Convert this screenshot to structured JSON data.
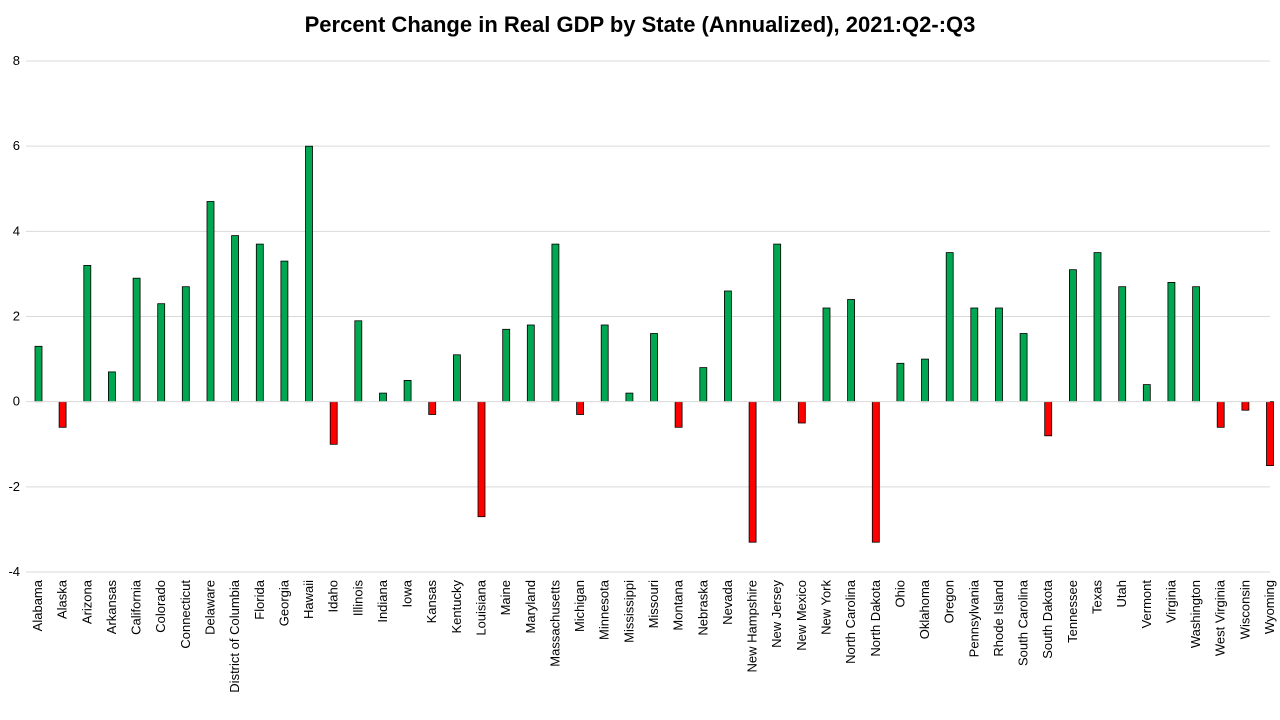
{
  "chart_data": {
    "type": "bar",
    "title": "Percent Change in Real GDP by State (Annualized), 2021:Q2-:Q3",
    "xlabel": "",
    "ylabel": "",
    "ylim": [
      -4,
      8
    ],
    "yticks": [
      -4,
      -2,
      0,
      2,
      4,
      6,
      8
    ],
    "grid": true,
    "legend": "none",
    "colors": {
      "positive": "#00a650",
      "negative": "#ff0000",
      "outline": "#000000",
      "grid": "#d9d9d9"
    },
    "categories": [
      "Alabama",
      "Alaska",
      "Arizona",
      "Arkansas",
      "California",
      "Colorado",
      "Connecticut",
      "Delaware",
      "District of Columbia",
      "Florida",
      "Georgia",
      "Hawaii",
      "Idaho",
      "Illinois",
      "Indiana",
      "Iowa",
      "Kansas",
      "Kentucky",
      "Louisiana",
      "Maine",
      "Maryland",
      "Massachusetts",
      "Michigan",
      "Minnesota",
      "Mississippi",
      "Missouri",
      "Montana",
      "Nebraska",
      "Nevada",
      "New Hampshire",
      "New Jersey",
      "New Mexico",
      "New York",
      "North Carolina",
      "North Dakota",
      "Ohio",
      "Oklahoma",
      "Oregon",
      "Pennsylvania",
      "Rhode Island",
      "South Carolina",
      "South Dakota",
      "Tennessee",
      "Texas",
      "Utah",
      "Vermont",
      "Virginia",
      "Washington",
      "West Virginia",
      "Wisconsin",
      "Wyoming"
    ],
    "values": [
      1.3,
      -0.6,
      3.2,
      0.7,
      2.9,
      2.3,
      2.7,
      4.7,
      3.9,
      3.7,
      3.3,
      6.0,
      -1.0,
      1.9,
      0.2,
      0.5,
      -0.3,
      1.1,
      -2.7,
      1.7,
      1.8,
      3.7,
      -0.3,
      1.8,
      0.2,
      1.6,
      -0.6,
      0.8,
      2.6,
      -3.3,
      3.7,
      -0.5,
      2.2,
      2.4,
      -3.3,
      0.9,
      1.0,
      3.5,
      2.2,
      2.2,
      1.6,
      -0.8,
      3.1,
      3.5,
      2.7,
      0.4,
      2.8,
      2.7,
      -0.6,
      -0.2,
      -1.5
    ]
  }
}
